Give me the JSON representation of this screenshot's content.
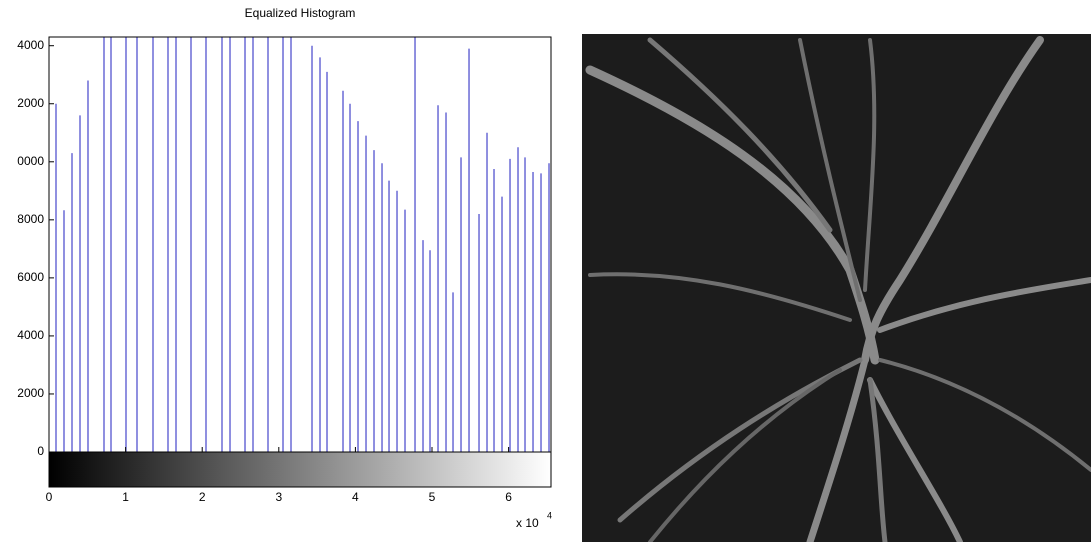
{
  "chart_data": {
    "type": "stem",
    "title": "Equalized Histogram",
    "color": "#2020c0",
    "x_multiplier": "x 10",
    "x_multiplier_exponent": "4",
    "xlim": [
      0,
      65535
    ],
    "ylim": [
      0,
      14300
    ],
    "xticks": [
      0,
      {
        "value": 10000,
        "label": "1"
      },
      {
        "value": 20000,
        "label": "2"
      },
      {
        "value": 30000,
        "label": "3"
      },
      {
        "value": 40000,
        "label": "4"
      },
      {
        "value": 50000,
        "label": "5"
      },
      {
        "value": 60000,
        "label": "6"
      }
    ],
    "yticks": [
      0,
      2000,
      4000,
      6000,
      8000,
      {
        "value": 10000,
        "label": "0000"
      },
      {
        "value": 12000,
        "label": "2000"
      },
      {
        "value": 14000,
        "label": "4000"
      }
    ],
    "x": [
      914,
      1958,
      3003,
      4047,
      5091,
      7180,
      8094,
      10052,
      11488,
      13577,
      15535,
      16580,
      18538,
      20496,
      22585,
      23630,
      25588,
      26632,
      28590,
      30549,
      31593,
      34335,
      35379,
      36293,
      38382,
      39296,
      40340,
      41385,
      42429,
      43474,
      44388,
      45432,
      46476,
      47782,
      48826,
      49740,
      50785,
      51829,
      52743,
      53787,
      54832,
      56137,
      57181,
      58095,
      59139,
      60184,
      61228,
      62142,
      63187,
      64231,
      65275
    ],
    "values": [
      12000,
      8330,
      10300,
      11600,
      12800,
      14300,
      14300,
      14300,
      14300,
      14300,
      14300,
      14300,
      14300,
      14300,
      14300,
      14300,
      14300,
      14300,
      14300,
      14300,
      14300,
      14000,
      13600,
      13100,
      12450,
      12000,
      11400,
      10900,
      10400,
      9950,
      9350,
      9000,
      8350,
      14300,
      7300,
      6950,
      11950,
      11700,
      5500,
      10150,
      13900,
      8200,
      11000,
      9750,
      8800,
      10100,
      10500,
      10150,
      9650,
      9600,
      9950
    ]
  }
}
